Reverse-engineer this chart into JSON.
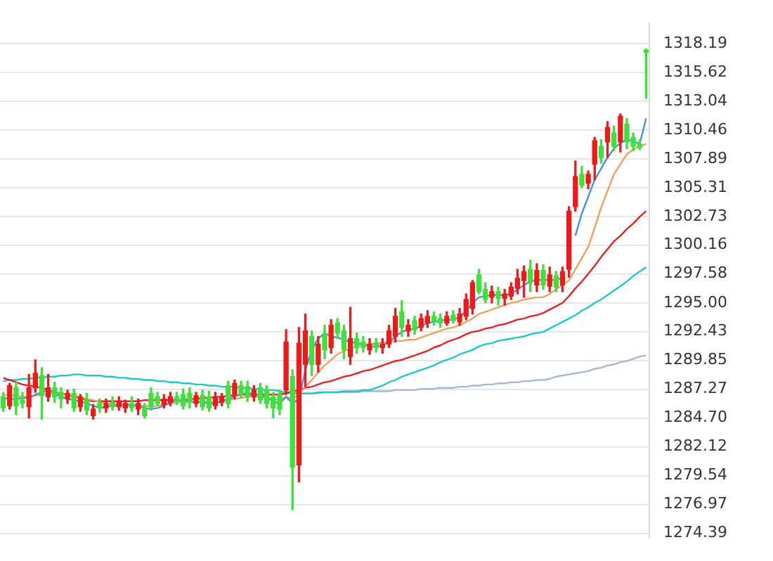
{
  "chart_data": {
    "type": "candlestick",
    "categories": [
      null,
      null,
      null,
      null,
      null,
      null,
      null,
      null,
      null,
      null,
      null,
      null,
      null,
      null,
      null,
      null,
      null,
      null,
      null,
      null,
      null,
      null,
      null,
      null,
      null,
      null,
      null,
      null,
      null,
      null,
      null,
      null,
      null,
      null,
      null,
      null,
      null,
      null,
      null,
      null,
      null,
      null,
      null,
      null,
      null,
      null,
      null,
      null,
      null,
      null,
      null,
      null,
      null,
      null,
      null,
      null,
      null,
      null,
      null,
      null,
      null,
      null,
      null,
      null,
      null,
      null,
      null,
      null,
      null,
      null,
      null,
      null,
      null,
      null,
      null,
      null,
      null,
      null,
      null,
      null,
      null,
      null,
      null,
      null,
      null,
      null,
      null,
      null,
      null,
      null,
      null,
      null,
      null,
      null,
      null,
      null,
      null,
      null,
      null,
      null,
      null
    ],
    "ohlc": [
      [
        1286.6,
        1287.0,
        1285.3,
        1285.6
      ],
      [
        1285.8,
        1287.8,
        1285.5,
        1287.6
      ],
      [
        1287.4,
        1287.9,
        1285.0,
        1285.8
      ],
      [
        1286.3,
        1287.0,
        1285.6,
        1286.0
      ],
      [
        1285.7,
        1288.6,
        1284.7,
        1287.4
      ],
      [
        1287.4,
        1289.9,
        1287.0,
        1288.7
      ],
      [
        1288.5,
        1289.2,
        1284.6,
        1286.7
      ],
      [
        1286.6,
        1288.6,
        1286.2,
        1287.4
      ],
      [
        1287.4,
        1287.9,
        1286.1,
        1286.6
      ],
      [
        1287.0,
        1287.4,
        1285.6,
        1286.4
      ],
      [
        1286.4,
        1287.2,
        1286.0,
        1286.9
      ],
      [
        1286.9,
        1287.3,
        1285.3,
        1285.6
      ],
      [
        1285.7,
        1286.8,
        1285.3,
        1286.6
      ],
      [
        1286.3,
        1286.9,
        1285.0,
        1285.4
      ],
      [
        1284.9,
        1285.9,
        1284.6,
        1285.5
      ],
      [
        1286.0,
        1286.4,
        1285.2,
        1285.6
      ],
      [
        1285.6,
        1286.4,
        1285.2,
        1286.0
      ],
      [
        1286.1,
        1286.6,
        1285.4,
        1285.7
      ],
      [
        1285.7,
        1286.6,
        1285.4,
        1286.2
      ],
      [
        1285.6,
        1286.3,
        1285.2,
        1286.0
      ],
      [
        1286.0,
        1286.6,
        1285.3,
        1285.6
      ],
      [
        1285.5,
        1286.4,
        1285.0,
        1286.0
      ],
      [
        1285.6,
        1286.0,
        1284.7,
        1284.9
      ],
      [
        1286.9,
        1287.4,
        1285.4,
        1285.7
      ],
      [
        1286.6,
        1287.0,
        1285.8,
        1286.0
      ],
      [
        1285.9,
        1286.8,
        1285.6,
        1286.4
      ],
      [
        1286.1,
        1287.0,
        1285.8,
        1286.6
      ],
      [
        1286.6,
        1287.0,
        1285.9,
        1286.2
      ],
      [
        1286.8,
        1287.3,
        1285.5,
        1285.8
      ],
      [
        1286.9,
        1287.4,
        1285.6,
        1286.1
      ],
      [
        1286.0,
        1287.0,
        1285.7,
        1286.7
      ],
      [
        1286.7,
        1287.2,
        1285.4,
        1285.7
      ],
      [
        1286.6,
        1287.1,
        1285.3,
        1285.6
      ],
      [
        1285.8,
        1287.0,
        1285.5,
        1286.5
      ],
      [
        1286.1,
        1286.9,
        1285.8,
        1286.6
      ],
      [
        1287.6,
        1288.0,
        1285.6,
        1286.0
      ],
      [
        1286.8,
        1288.1,
        1286.4,
        1287.8
      ],
      [
        1287.6,
        1288.0,
        1286.5,
        1286.8
      ],
      [
        1287.5,
        1288.0,
        1286.2,
        1286.6
      ],
      [
        1286.6,
        1287.6,
        1286.2,
        1287.2
      ],
      [
        1287.4,
        1287.8,
        1286.0,
        1286.3
      ],
      [
        1287.2,
        1287.6,
        1285.6,
        1286.0
      ],
      [
        1286.6,
        1287.0,
        1284.7,
        1285.6
      ],
      [
        1286.8,
        1287.2,
        1285.0,
        1285.5
      ],
      [
        1287.2,
        1292.6,
        1286.8,
        1291.5
      ],
      [
        1288.4,
        1289.0,
        1276.5,
        1280.3
      ],
      [
        1280.5,
        1292.8,
        1279.0,
        1291.4
      ],
      [
        1289.5,
        1294.0,
        1287.5,
        1292.5
      ],
      [
        1292.0,
        1292.5,
        1288.5,
        1289.5
      ],
      [
        1289.5,
        1292.0,
        1288.8,
        1291.3
      ],
      [
        1292.2,
        1293.0,
        1290.0,
        1290.8
      ],
      [
        1291.0,
        1293.5,
        1290.5,
        1293.0
      ],
      [
        1293.2,
        1293.6,
        1291.8,
        1292.3
      ],
      [
        1292.5,
        1293.0,
        1290.0,
        1290.8
      ],
      [
        1290.2,
        1294.6,
        1289.5,
        1291.8
      ],
      [
        1291.8,
        1292.3,
        1290.5,
        1291.0
      ],
      [
        1291.5,
        1292.0,
        1290.6,
        1291.0
      ],
      [
        1290.8,
        1291.8,
        1290.4,
        1291.3
      ],
      [
        1291.4,
        1291.8,
        1290.6,
        1291.0
      ],
      [
        1291.0,
        1291.8,
        1290.5,
        1291.3
      ],
      [
        1291.3,
        1293.0,
        1291.0,
        1292.5
      ],
      [
        1292.0,
        1294.5,
        1291.5,
        1293.8
      ],
      [
        1294.2,
        1295.2,
        1292.0,
        1292.8
      ],
      [
        1292.5,
        1293.5,
        1292.0,
        1293.0
      ],
      [
        1293.4,
        1293.8,
        1292.2,
        1292.6
      ],
      [
        1292.8,
        1294.0,
        1292.5,
        1293.6
      ],
      [
        1293.2,
        1294.3,
        1292.8,
        1293.8
      ],
      [
        1293.8,
        1294.2,
        1293.0,
        1293.4
      ],
      [
        1293.6,
        1294.0,
        1292.8,
        1293.2
      ],
      [
        1293.2,
        1294.2,
        1293.0,
        1293.8
      ],
      [
        1293.9,
        1294.3,
        1293.2,
        1293.4
      ],
      [
        1293.3,
        1294.5,
        1293.0,
        1294.0
      ],
      [
        1293.8,
        1295.8,
        1293.5,
        1295.3
      ],
      [
        1294.5,
        1297.0,
        1294.0,
        1296.8
      ],
      [
        1297.5,
        1298.0,
        1295.8,
        1296.0
      ],
      [
        1296.2,
        1296.8,
        1295.0,
        1295.3
      ],
      [
        1295.5,
        1296.5,
        1295.0,
        1296.0
      ],
      [
        1296.0,
        1296.4,
        1294.8,
        1295.4
      ],
      [
        1295.4,
        1296.2,
        1294.8,
        1295.8
      ],
      [
        1295.6,
        1296.8,
        1295.3,
        1296.4
      ],
      [
        1296.3,
        1298.0,
        1295.8,
        1297.2
      ],
      [
        1297.0,
        1298.3,
        1295.5,
        1297.8
      ],
      [
        1298.0,
        1298.8,
        1296.0,
        1296.8
      ],
      [
        1296.6,
        1298.5,
        1296.0,
        1297.9
      ],
      [
        1297.9,
        1298.4,
        1296.2,
        1296.6
      ],
      [
        1296.5,
        1298.2,
        1296.0,
        1297.5
      ],
      [
        1297.4,
        1297.8,
        1296.0,
        1296.4
      ],
      [
        1296.6,
        1298.2,
        1296.0,
        1297.8
      ],
      [
        1298.0,
        1303.6,
        1297.3,
        1303.2
      ],
      [
        1303.6,
        1307.7,
        1303.2,
        1306.3
      ],
      [
        1306.5,
        1307.2,
        1305.3,
        1305.5
      ],
      [
        1305.7,
        1306.8,
        1305.2,
        1306.5
      ],
      [
        1307.4,
        1309.8,
        1306.0,
        1309.5
      ],
      [
        1309.0,
        1309.6,
        1307.5,
        1308.0
      ],
      [
        1309.4,
        1311.2,
        1308.0,
        1310.7
      ],
      [
        1310.2,
        1310.8,
        1308.6,
        1309.0
      ],
      [
        1309.4,
        1311.9,
        1308.5,
        1311.7
      ],
      [
        1311.0,
        1311.5,
        1308.8,
        1309.4
      ],
      [
        1309.8,
        1310.2,
        1308.6,
        1309.0
      ],
      [
        1309.2,
        1309.6,
        1308.7,
        1308.9
      ],
      [
        1317.6,
        1317.7,
        1313.3,
        1317.4
      ]
    ],
    "colors": [
      "#3ee03e",
      "#f01818",
      "#3ee03e",
      "#3ee03e",
      "#f01818",
      "#f01818",
      "#3ee03e",
      "#f01818",
      "#3ee03e",
      "#3ee03e",
      "#f01818",
      "#3ee03e",
      "#f01818",
      "#3ee03e",
      "#f01818",
      "#3ee03e",
      "#f01818",
      "#3ee03e",
      "#f01818",
      "#f01818",
      "#3ee03e",
      "#f01818",
      "#3ee03e",
      "#3ee03e",
      "#3ee03e",
      "#f01818",
      "#f01818",
      "#3ee03e",
      "#3ee03e",
      "#3ee03e",
      "#f01818",
      "#3ee03e",
      "#3ee03e",
      "#f01818",
      "#f01818",
      "#3ee03e",
      "#f01818",
      "#3ee03e",
      "#3ee03e",
      "#f01818",
      "#3ee03e",
      "#3ee03e",
      "#3ee03e",
      "#3ee03e",
      "#f01818",
      "#3ee03e",
      "#f01818",
      "#f01818",
      "#3ee03e",
      "#f01818",
      "#3ee03e",
      "#f01818",
      "#3ee03e",
      "#3ee03e",
      "#f01818",
      "#3ee03e",
      "#3ee03e",
      "#f01818",
      "#3ee03e",
      "#f01818",
      "#f01818",
      "#f01818",
      "#3ee03e",
      "#f01818",
      "#3ee03e",
      "#f01818",
      "#f01818",
      "#3ee03e",
      "#3ee03e",
      "#f01818",
      "#3ee03e",
      "#f01818",
      "#f01818",
      "#f01818",
      "#3ee03e",
      "#3ee03e",
      "#f01818",
      "#3ee03e",
      "#f01818",
      "#f01818",
      "#f01818",
      "#f01818",
      "#3ee03e",
      "#f01818",
      "#3ee03e",
      "#f01818",
      "#3ee03e",
      "#f01818",
      "#f01818",
      "#f01818",
      "#3ee03e",
      "#f01818",
      "#f01818",
      "#3ee03e",
      "#f01818",
      "#3ee03e",
      "#f01818",
      "#3ee03e",
      "#3ee03e",
      "#3ee03e",
      "#3ee03e"
    ],
    "series": [
      {
        "type": "line",
        "color": "#4a8fe0",
        "values": [
          1286.5,
          1286.4,
          1286.4,
          1286.5,
          1286.5,
          1286.8,
          1287.0,
          1287.2,
          1286.9,
          1286.6,
          1286.4,
          1286.3,
          1286.2,
          1286.0,
          1285.8,
          1285.6,
          1285.7,
          1285.8,
          1285.8,
          1285.9,
          1285.9,
          1285.8,
          1285.6,
          1285.5,
          1285.6,
          1285.8,
          1286.1,
          1286.3,
          1286.3,
          1286.2,
          1286.1,
          1286.1,
          1286.0,
          1286.0,
          1286.2,
          1286.4,
          1286.6,
          1286.9,
          1286.9,
          1286.9,
          1286.7,
          1286.5,
          1286.2,
          1286.0,
          1286.6,
          1286.0,
          1286.4,
          1289.0,
          1290.8,
          1291.8,
          1292.3,
          1292.0,
          1291.9,
          1291.7,
          1291.5,
          1291.4,
          1291.3,
          1291.1,
          1291.1,
          1291.2,
          1291.5,
          1292.0,
          1292.4,
          1292.6,
          1292.7,
          1292.9,
          1293.2,
          1293.3,
          1293.4,
          1293.5,
          1293.5,
          1293.7,
          1294.3,
          1295.0,
          1295.5,
          1295.6,
          1295.7,
          1295.7,
          1295.7,
          1295.8,
          1296.2,
          1296.6,
          1296.9,
          1297.1,
          1297.0,
          1297.1,
          1297.0,
          1297.3,
          null,
          1301.0,
          1303.0,
          1304.5,
          1306.0,
          1307.0,
          1308.0,
          1308.8,
          1309.3,
          1309.6,
          1309.5,
          1309.2,
          1311.5
        ]
      },
      {
        "type": "line",
        "color": "#f0a060",
        "values": [
          1286.8,
          1286.7,
          1286.7,
          1286.6,
          1286.6,
          1286.7,
          1286.8,
          1286.9,
          1286.9,
          1286.9,
          1286.8,
          1286.7,
          1286.6,
          1286.4,
          1286.3,
          1286.1,
          1286.0,
          1285.9,
          1285.9,
          1285.8,
          1285.8,
          1285.8,
          1285.8,
          1285.7,
          1285.8,
          1285.9,
          1286.0,
          1286.1,
          1286.1,
          1286.1,
          1286.2,
          1286.2,
          1286.1,
          1286.1,
          1286.2,
          1286.3,
          1286.4,
          1286.5,
          1286.6,
          1286.6,
          1286.6,
          1286.5,
          1286.4,
          1286.3,
          1286.6,
          1286.4,
          1286.8,
          1287.5,
          1288.1,
          1288.8,
          1289.4,
          1289.9,
          1290.4,
          1290.7,
          1290.9,
          1291.1,
          1291.3,
          1291.3,
          1291.4,
          1291.4,
          1291.5,
          1291.6,
          1291.6,
          1291.7,
          1291.7,
          1291.9,
          1292.1,
          1292.3,
          1292.5,
          1292.7,
          1292.8,
          1293.0,
          1293.3,
          1293.6,
          1294.0,
          1294.2,
          1294.4,
          1294.6,
          1294.8,
          1295.0,
          1295.1,
          1295.3,
          1295.4,
          1295.5,
          1295.5,
          1295.8,
          1296.2,
          1296.6,
          1297.0,
          1298.0,
          1299.0,
          1300.0,
          1301.7,
          1303.5,
          1305.0,
          1306.5,
          1307.4,
          1308.3,
          1308.7,
          1309.0,
          1309.2
        ]
      },
      {
        "type": "line",
        "color": "#e8202a",
        "values": [
          1288.3,
          1288.1,
          1287.9,
          1287.7,
          1287.6,
          1287.5,
          1287.4,
          1287.2,
          1287.0,
          1286.9,
          1286.8,
          1286.6,
          1286.5,
          1286.3,
          1286.2,
          1286.2,
          1286.2,
          1286.2,
          1286.2,
          1286.2,
          1286.2,
          1286.2,
          1286.3,
          1286.3,
          1286.3,
          1286.3,
          1286.3,
          1286.3,
          1286.3,
          1286.4,
          1286.4,
          1286.5,
          1286.5,
          1286.6,
          1286.6,
          1286.7,
          1286.7,
          1286.8,
          1286.8,
          1286.8,
          1286.8,
          1286.8,
          1286.8,
          1286.8,
          1286.9,
          1287.1,
          1287.2,
          1287.4,
          1287.5,
          1287.7,
          1287.9,
          1288.0,
          1288.2,
          1288.4,
          1288.5,
          1288.7,
          1288.9,
          1289.0,
          1289.2,
          1289.4,
          1289.6,
          1289.8,
          1289.9,
          1290.1,
          1290.3,
          1290.5,
          1290.7,
          1291.0,
          1291.2,
          1291.5,
          1291.7,
          1291.9,
          1292.2,
          1292.4,
          1292.5,
          1292.7,
          1292.8,
          1293.0,
          1293.1,
          1293.3,
          1293.5,
          1293.6,
          1293.8,
          1293.9,
          1294.1,
          1294.4,
          1294.7,
          1295.0,
          1295.6,
          1296.3,
          1296.9,
          1297.6,
          1298.3,
          1299.1,
          1299.8,
          1300.5,
          1301.0,
          1301.6,
          1302.1,
          1302.7,
          1303.2
        ]
      },
      {
        "type": "line",
        "color": "#20c8c8",
        "values": [
          1288.0,
          1288.1,
          1288.1,
          1288.2,
          1288.2,
          1288.3,
          1288.3,
          1288.4,
          1288.4,
          1288.5,
          1288.5,
          1288.6,
          1288.6,
          1288.5,
          1288.5,
          1288.5,
          1288.4,
          1288.4,
          1288.3,
          1288.3,
          1288.2,
          1288.2,
          1288.1,
          1288.1,
          1288.0,
          1288.0,
          1287.9,
          1287.9,
          1287.8,
          1287.8,
          1287.7,
          1287.7,
          1287.6,
          1287.6,
          1287.5,
          1287.5,
          1287.5,
          1287.4,
          1287.4,
          1287.3,
          1287.3,
          1287.2,
          1287.2,
          1287.1,
          1287.0,
          1287.0,
          1286.9,
          1286.9,
          1286.9,
          1287.0,
          1287.0,
          1287.0,
          1287.0,
          1287.1,
          1287.1,
          1287.1,
          1287.2,
          1287.2,
          1287.4,
          1287.6,
          1287.9,
          1288.1,
          1288.4,
          1288.6,
          1288.8,
          1289.0,
          1289.2,
          1289.4,
          1289.7,
          1289.9,
          1290.1,
          1290.4,
          1290.6,
          1290.8,
          1291.1,
          1291.3,
          1291.4,
          1291.6,
          1291.7,
          1291.8,
          1291.9,
          1292.0,
          1292.2,
          1292.3,
          1292.4,
          1292.7,
          1293.0,
          1293.3,
          1293.6,
          1293.9,
          1294.3,
          1294.6,
          1295.0,
          1295.3,
          1295.7,
          1296.1,
          1296.5,
          1296.9,
          1297.4,
          1297.8,
          1298.2
        ]
      },
      {
        "type": "line",
        "color": "#a8b8d0",
        "values": [
          null,
          null,
          null,
          null,
          null,
          null,
          null,
          null,
          null,
          null,
          null,
          null,
          null,
          null,
          null,
          null,
          null,
          null,
          null,
          null,
          null,
          null,
          null,
          null,
          null,
          null,
          null,
          null,
          null,
          null,
          null,
          null,
          null,
          null,
          null,
          null,
          null,
          null,
          null,
          null,
          null,
          null,
          null,
          1286.9,
          1286.9,
          1286.9,
          1286.9,
          1286.9,
          1286.9,
          1286.9,
          1287.0,
          1287.0,
          1287.0,
          1287.0,
          1287.0,
          1287.0,
          1287.1,
          1287.1,
          1287.1,
          1287.1,
          1287.1,
          1287.2,
          1287.2,
          1287.2,
          1287.2,
          1287.3,
          1287.3,
          1287.3,
          1287.4,
          1287.4,
          1287.4,
          1287.5,
          1287.5,
          1287.6,
          1287.6,
          1287.7,
          1287.7,
          1287.8,
          1287.8,
          1287.9,
          1287.9,
          1288.0,
          1288.0,
          1288.1,
          1288.1,
          1288.2,
          1288.4,
          1288.5,
          1288.6,
          1288.7,
          1288.8,
          1288.9,
          1289.1,
          1289.2,
          1289.4,
          1289.5,
          1289.7,
          1289.8,
          1290.0,
          1290.2,
          1290.3
        ]
      }
    ],
    "ylim": [
      1274.0,
      1320.0
    ],
    "yticks": [
      1274.39,
      1276.97,
      1279.54,
      1282.12,
      {
        "value": 1284.7,
        "label": "1284.70"
      },
      1287.27,
      1289.85,
      1292.43,
      {
        "value": 1295,
        "label": "1295.00"
      },
      1297.58,
      1300.16,
      1302.73,
      1305.31,
      1307.89,
      1310.46,
      1313.04,
      1315.62,
      1318.19
    ],
    "grid": "y",
    "legend": false,
    "tick_labels": "y",
    "marker": "none",
    "line_style": "solid"
  }
}
